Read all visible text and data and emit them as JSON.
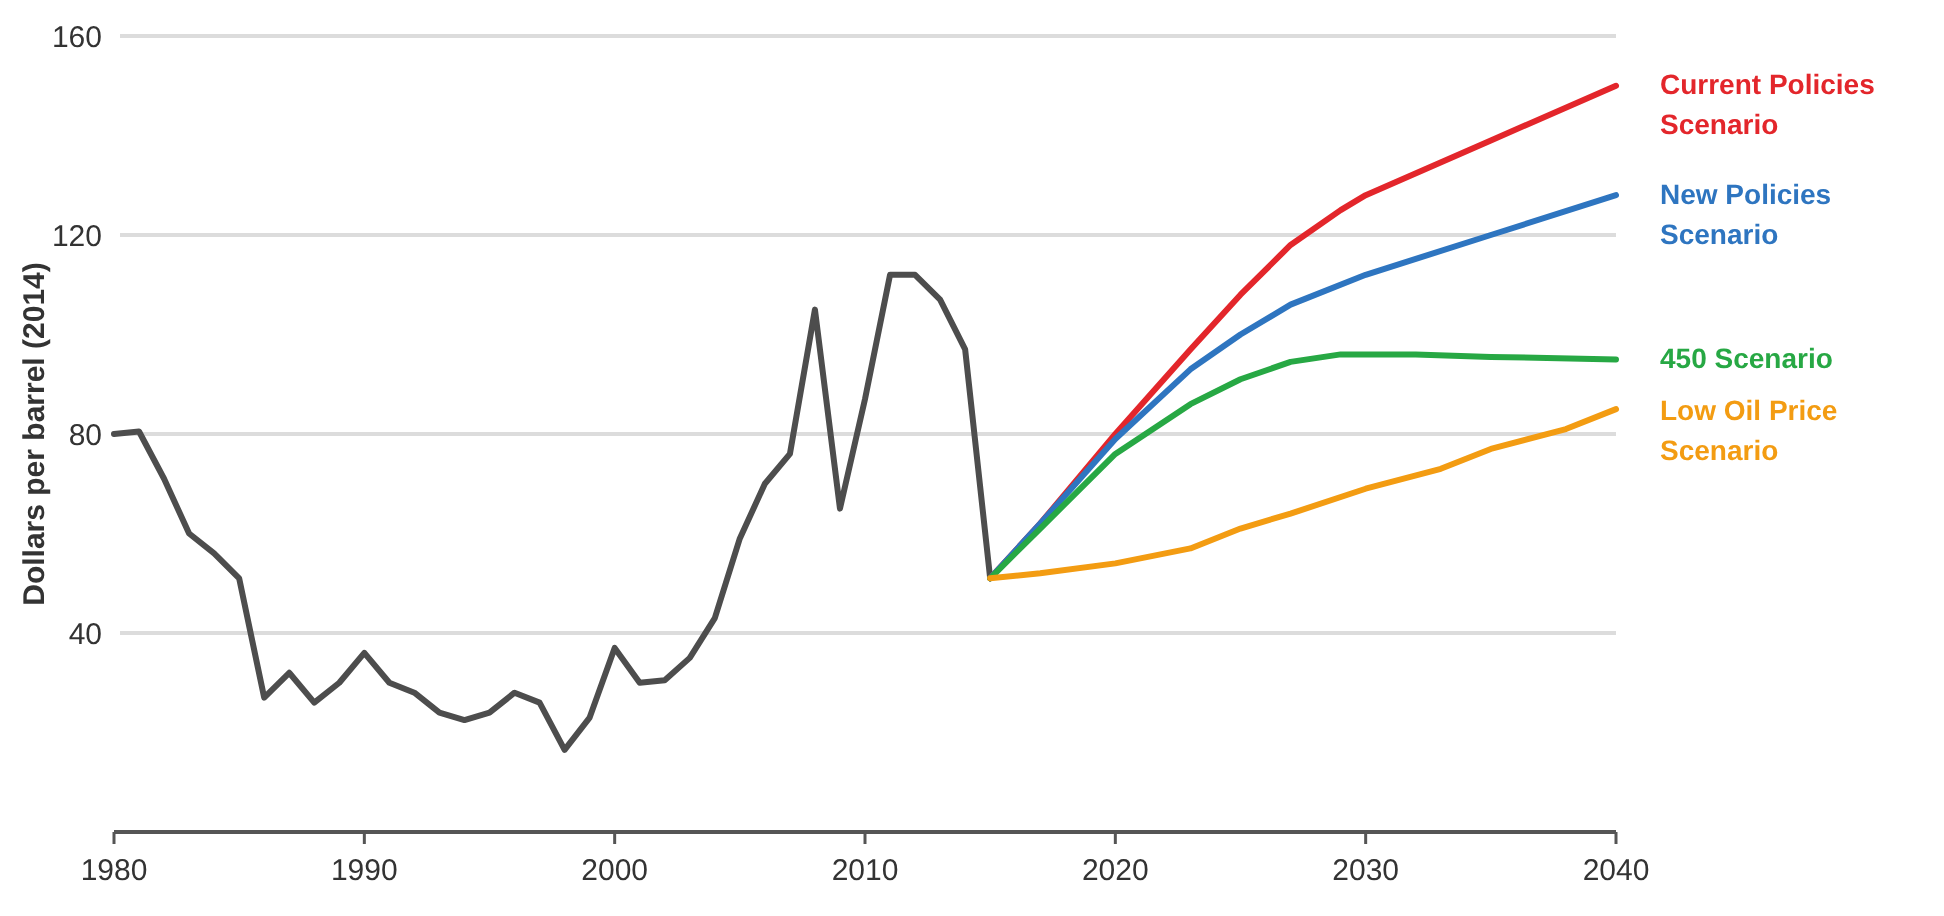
{
  "chart_data": {
    "type": "line",
    "ylabel": "Dollars per barrel (2014)",
    "xlim": [
      1980,
      2040
    ],
    "xticks": [
      1980,
      1990,
      2000,
      2010,
      2020,
      2030,
      2040
    ],
    "ylim": [
      0,
      160
    ],
    "yticks": [
      40,
      80,
      120,
      160
    ],
    "grid": "y",
    "legend": false,
    "marker": "none",
    "line_style": "solid",
    "series": [
      {
        "color": "#4d4d4d",
        "x": [
          1980,
          1981,
          1982,
          1983,
          1984,
          1985,
          1986,
          1987,
          1988,
          1989,
          1990,
          1991,
          1992,
          1993,
          1994,
          1995,
          1996,
          1997,
          1998,
          1999,
          2000,
          2001,
          2002,
          2003,
          2004,
          2005,
          2006,
          2007,
          2008,
          2009,
          2010,
          2011,
          2012,
          2013,
          2014,
          2015
        ],
        "values": [
          80,
          80.5,
          71,
          60,
          56,
          51,
          27,
          32,
          26,
          30,
          36,
          30,
          28,
          24,
          22.5,
          24,
          28,
          26,
          16.5,
          23,
          37,
          30,
          30.5,
          35,
          43,
          59,
          70,
          76,
          105,
          65,
          87,
          112,
          112,
          107,
          97,
          51
        ]
      },
      {
        "name": "Current Policies Scenario",
        "color": "#e3262b",
        "x": [
          2015,
          2017,
          2020,
          2023,
          2025,
          2027,
          2029,
          2030,
          2035,
          2040
        ],
        "values": [
          51,
          62,
          80,
          97,
          108,
          118,
          125,
          128,
          139,
          150
        ]
      },
      {
        "name": "New Policies Scenario",
        "color": "#2e75c0",
        "x": [
          2015,
          2017,
          2020,
          2023,
          2025,
          2027,
          2030,
          2035,
          2040
        ],
        "values": [
          51,
          62,
          79,
          93,
          100,
          106,
          112,
          120,
          128
        ]
      },
      {
        "name": "450 Scenario",
        "color": "#27a844",
        "x": [
          2015,
          2017,
          2020,
          2023,
          2025,
          2027,
          2029,
          2032,
          2035,
          2040
        ],
        "values": [
          51,
          61,
          76,
          86,
          91,
          94.5,
          96,
          96,
          95.5,
          95
        ]
      },
      {
        "name": "Low Oil Price Scenario",
        "color": "#f39c12",
        "x": [
          2015,
          2017,
          2020,
          2023,
          2025,
          2027,
          2030,
          2033,
          2035,
          2038,
          2040
        ],
        "values": [
          51,
          52,
          54,
          57,
          61,
          64,
          69,
          73,
          77,
          81,
          85
        ]
      }
    ]
  }
}
